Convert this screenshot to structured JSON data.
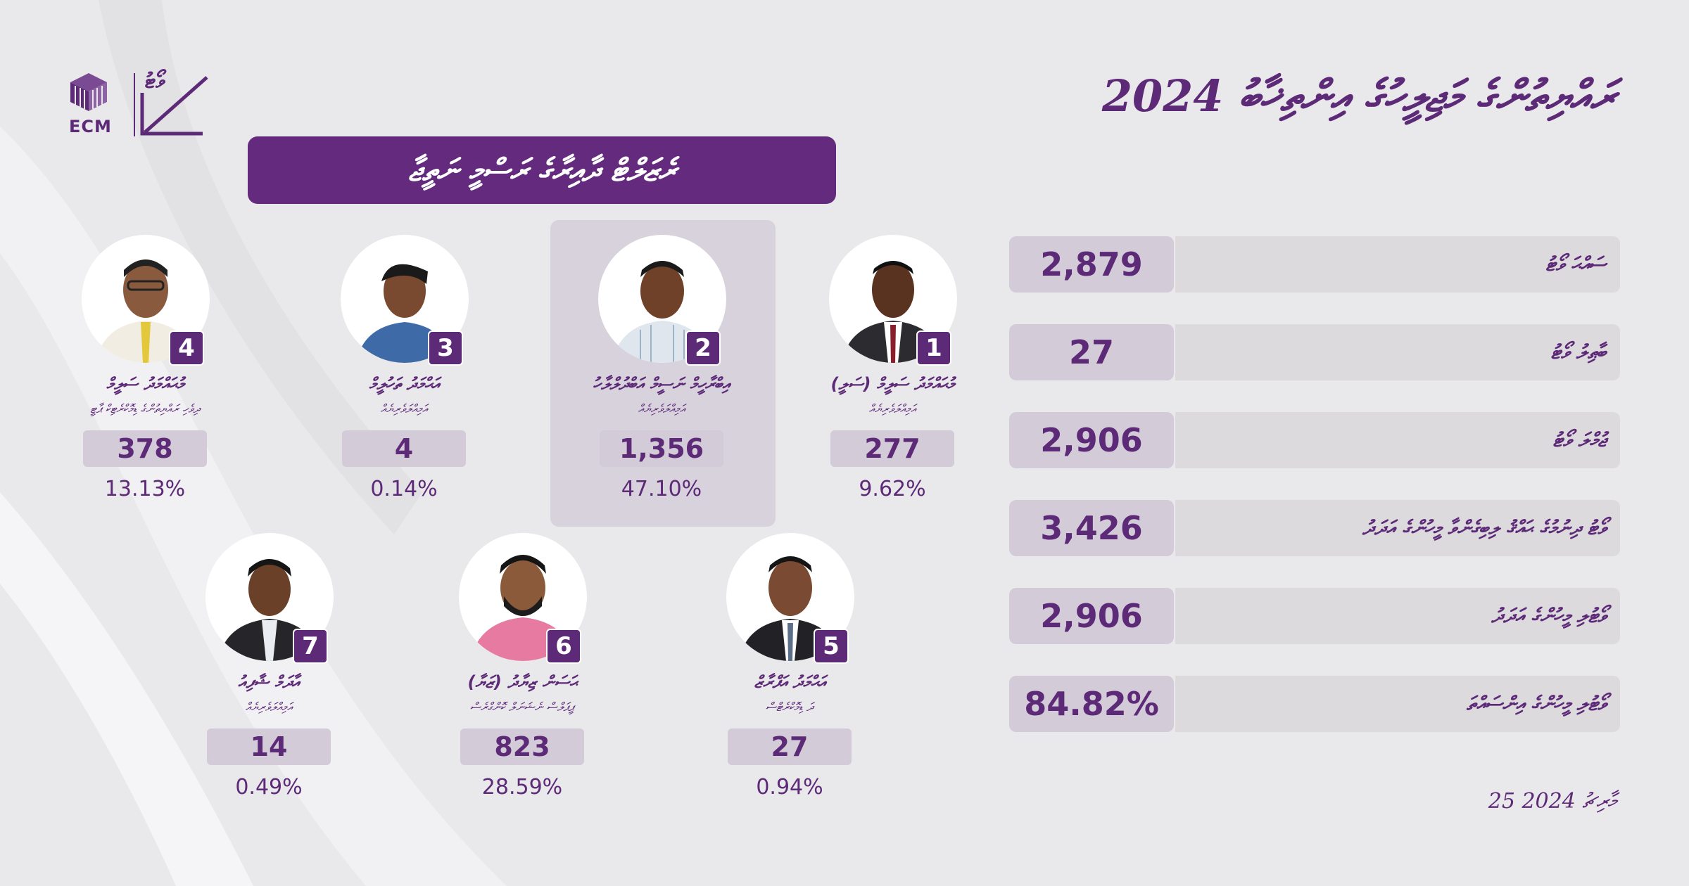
{
  "title": "ރައްޔިތުންގެ މަޖިލީހުގެ އިންތިޚާބު 2024",
  "banner": "ރެޒަލްޓް ދާއިރާގެ ރަސްމީ ނަތީޖާ",
  "logo": {
    "org": "ECM",
    "word": "ވޯޓު"
  },
  "candidates": [
    {
      "number": "4",
      "name": "މުޙައްމަދު ސަލީމް",
      "party": "ދިވެހި ރައްޔިތުންގެ ޑިމޮކްރެޓިކް ޕާޓީ",
      "votes": "378",
      "percent": "13.13%"
    },
    {
      "number": "3",
      "name": "އަޙްމަދު ތަހުލީމް",
      "party": "އަމިއްލަވެރިޔެއް",
      "votes": "4",
      "percent": "0.14%"
    },
    {
      "number": "2",
      "name": "އިބްރާހީމް ނަސީމް އަބްދުލްލާހު",
      "party": "އަމިއްލަވެރިޔެއް",
      "votes": "1,356",
      "percent": "47.10%",
      "winner": true
    },
    {
      "number": "1",
      "name": "މުޙައްމަދު ސަލީމް (ސަލީ)",
      "party": "އަމިއްލަވެރިޔެއް",
      "votes": "277",
      "percent": "9.62%"
    },
    {
      "number": "7",
      "name": "އާދަމް ޝާފިއު",
      "party": "އަމިއްލަވެރިޔެއް",
      "votes": "14",
      "percent": "0.49%"
    },
    {
      "number": "6",
      "name": "ޙަސަން ޒިޔާދު (ޒަޔާ)",
      "party": "ޕީޕަލްސް ނެޝަނަލް ކޮންގްރެސް",
      "votes": "823",
      "percent": "28.59%"
    },
    {
      "number": "5",
      "name": "އަޙްމަދު އަފްރާޒް",
      "party": "ދަ ޑިމޮކްރެޓްސް",
      "votes": "27",
      "percent": "0.94%"
    }
  ],
  "stats": [
    {
      "label": "ސައްޙަ ވޯޓު",
      "value": "2,879"
    },
    {
      "label": "ބާޠިލު ވޯޓު",
      "value": "27"
    },
    {
      "label": "ޖުމްލަ ވޯޓު",
      "value": "2,906"
    },
    {
      "label": "ވޯޓު ދިނުމުގެ ޙައްޤު ލިބިގެންވާ މީހުންގެ އަދަދު",
      "value": "3,426"
    },
    {
      "label": "ވޯޓުލި މީހުންގެ އަދަދު",
      "value": "2,906"
    },
    {
      "label": "ވޯޓުލި މީހުންގެ އިންސައްތަ",
      "value": "84.82%"
    }
  ],
  "date": "25 މާރިޗު 2024",
  "colors": {
    "primary": "#5d2a78",
    "banner": "#632a7e",
    "value_bg": "#d3cbd8",
    "label_bg": "#dcdadd",
    "background": "#e9e8ea"
  }
}
